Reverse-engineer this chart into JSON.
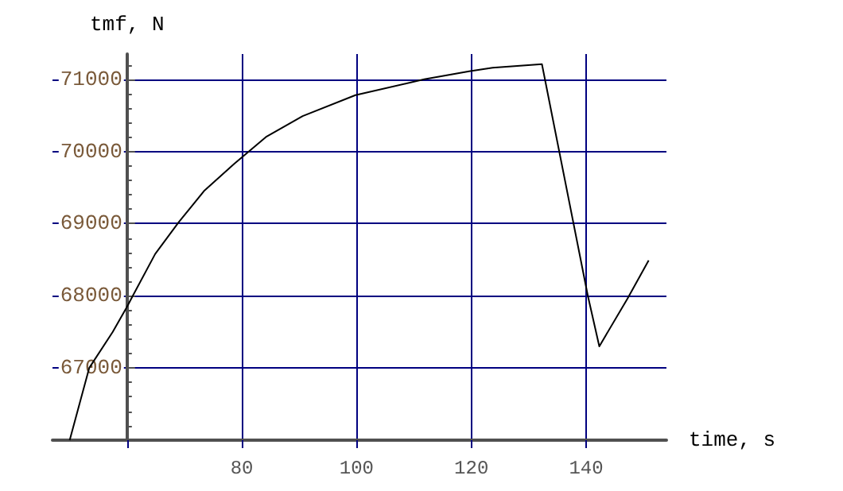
{
  "chart_data": {
    "type": "line",
    "xlabel": "time, s",
    "ylabel": "tmf, N",
    "x": [
      50,
      53.4,
      57.5,
      60,
      61,
      64.9,
      69,
      73.5,
      78.7,
      84.2,
      90.6,
      99.8,
      111.8,
      119.6,
      123.7,
      132.3,
      140.3,
      142.3,
      147.2,
      150.9
    ],
    "series": [
      {
        "color": "#000000",
        "values": [
          66000,
          67000,
          67500,
          67850,
          68000,
          68580,
          69020,
          69460,
          69830,
          70200,
          70490,
          70780,
          71000,
          71110,
          71160,
          71210,
          68000,
          67300,
          67960,
          68490
        ]
      }
    ],
    "xlim": [
      47,
      154
    ],
    "xticks": [
      {
        "value": 60,
        "label": null
      },
      80,
      100,
      120,
      140
    ],
    "ylim": [
      66000,
      71350
    ],
    "yticks": [
      {
        "value": 66000,
        "label": null
      },
      67000,
      68000,
      69000,
      70000,
      71000
    ],
    "grid": true,
    "marker": "none",
    "line_style": "solid"
  }
}
